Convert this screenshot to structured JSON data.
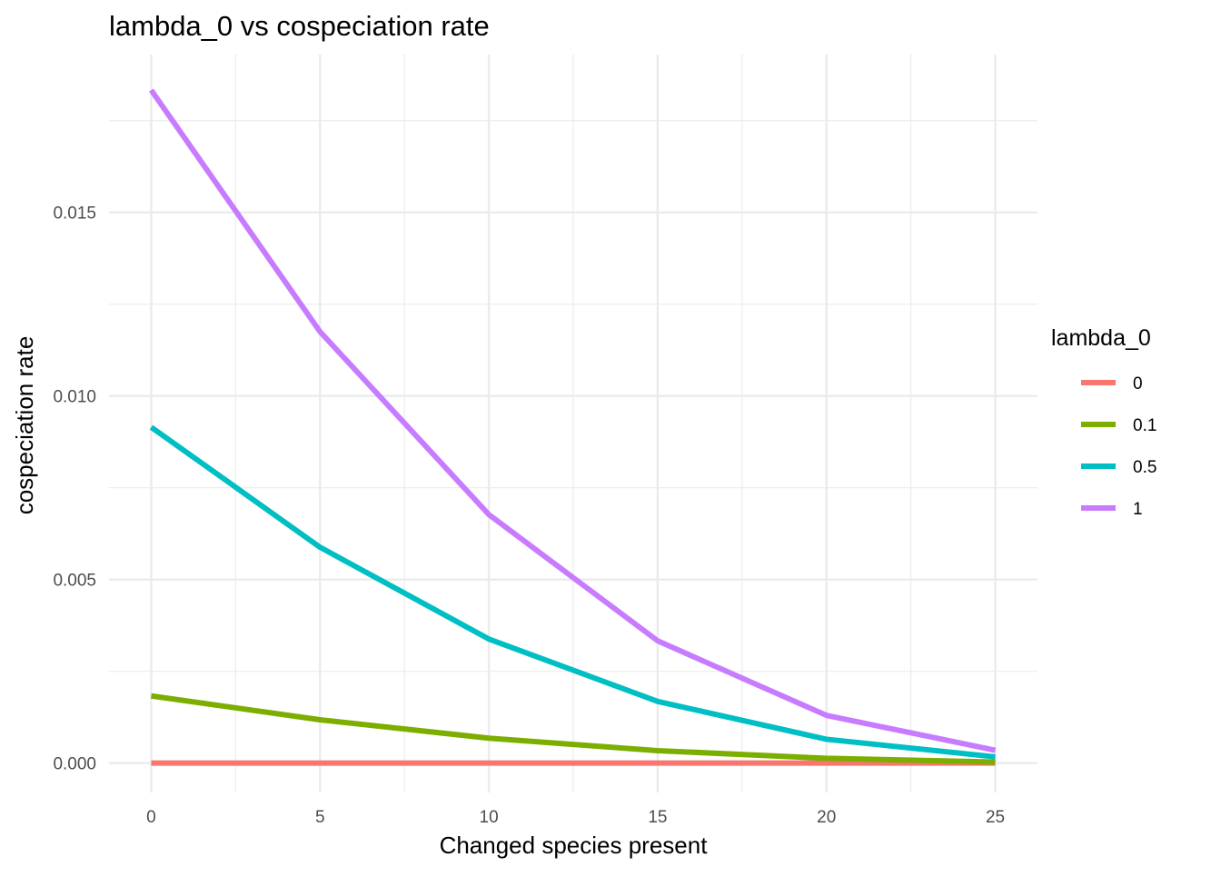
{
  "chart_data": {
    "type": "line",
    "title": "lambda_0 vs cospeciation rate",
    "xlabel": "Changed species present",
    "ylabel": "cospeciation rate",
    "x": [
      0,
      5,
      10,
      15,
      20,
      25
    ],
    "x_ticks": [
      0,
      5,
      10,
      15,
      20,
      25
    ],
    "x_tick_labels": [
      "0",
      "5",
      "10",
      "15",
      "20",
      "25"
    ],
    "y_ticks": [
      0.0,
      0.005,
      0.01,
      0.015
    ],
    "y_tick_labels": [
      "0.000",
      "0.005",
      "0.010",
      "0.015"
    ],
    "xlim": [
      -1.25,
      26.25
    ],
    "ylim": [
      -0.0008,
      0.0193
    ],
    "grid": true,
    "legend": {
      "title": "lambda_0",
      "placement": "right"
    },
    "series": [
      {
        "name": "0",
        "color": "#F8766D",
        "values": [
          0.0,
          0.0,
          0.0,
          0.0,
          0.0,
          0.0
        ]
      },
      {
        "name": "0.1",
        "color": "#7CAE00",
        "values": [
          0.00183,
          0.00118,
          0.00068,
          0.00034,
          0.00013,
          3e-05
        ]
      },
      {
        "name": "0.5",
        "color": "#00BFC4",
        "values": [
          0.00915,
          0.00588,
          0.00338,
          0.00168,
          0.00065,
          0.00017
        ]
      },
      {
        "name": "1",
        "color": "#C77CFF",
        "values": [
          0.01833,
          0.01175,
          0.00677,
          0.00333,
          0.0013,
          0.00035
        ]
      }
    ]
  }
}
